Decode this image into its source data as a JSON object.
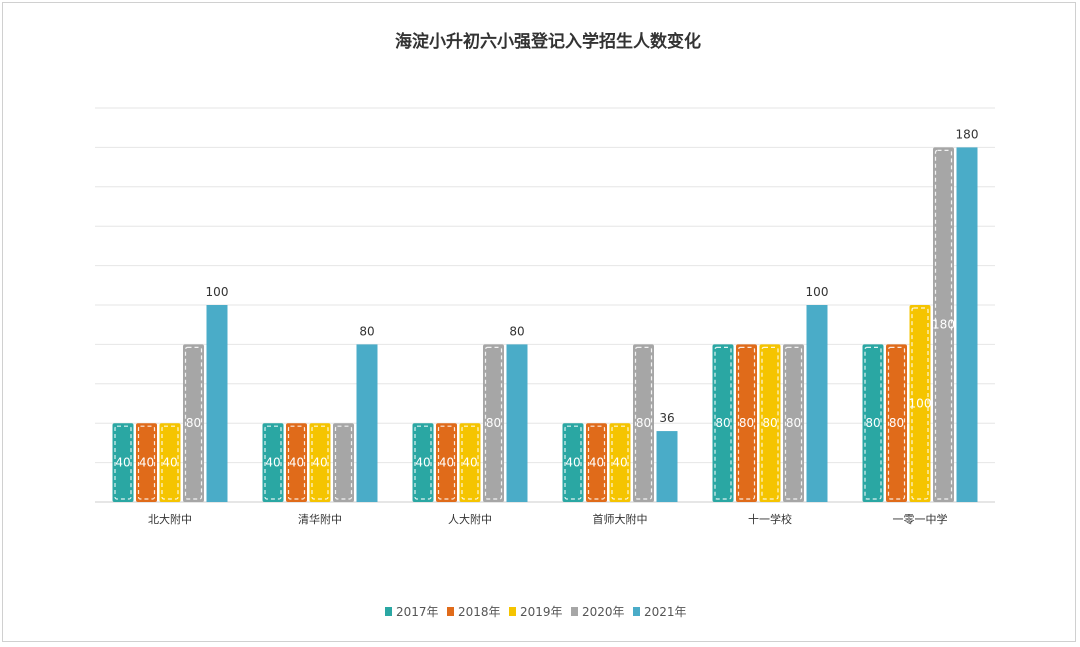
{
  "chart_data": {
    "type": "bar",
    "title": "海淀小升初六小强登记入学招生人数变化",
    "xlabel": "",
    "ylabel": "",
    "ylim": [
      0,
      200
    ],
    "grid": true,
    "legend_position": "bottom",
    "categories": [
      "北大附中",
      "清华附中",
      "人大附中",
      "首师大附中",
      "十一学校",
      "一零一中学"
    ],
    "series": [
      {
        "name": "2017年",
        "color": "#2aa7a3",
        "values": [
          40,
          40,
          40,
          40,
          80,
          80
        ],
        "labels": [
          "40",
          "40",
          "40",
          "40",
          "80",
          "80"
        ]
      },
      {
        "name": "2018年",
        "color": "#e06b1a",
        "values": [
          40,
          40,
          40,
          40,
          80,
          80
        ],
        "labels": [
          "40",
          "40",
          "40",
          "40",
          "80",
          "80"
        ]
      },
      {
        "name": "2019年",
        "color": "#f5c400",
        "values": [
          40,
          40,
          40,
          40,
          80,
          100
        ],
        "labels": [
          "40",
          "40",
          "40",
          "40",
          "80",
          "100"
        ]
      },
      {
        "name": "2020年",
        "color": "#a6a6a6",
        "values": [
          80,
          40,
          80,
          80,
          80,
          180
        ],
        "labels": [
          "80",
          "",
          "80",
          "80",
          "80",
          "180"
        ]
      },
      {
        "name": "2021年",
        "color": "#4aacc8",
        "values": [
          100,
          80,
          80,
          36,
          100,
          180
        ],
        "labels": [
          "100",
          "80",
          "80",
          "36",
          "100",
          "180"
        ]
      }
    ]
  }
}
